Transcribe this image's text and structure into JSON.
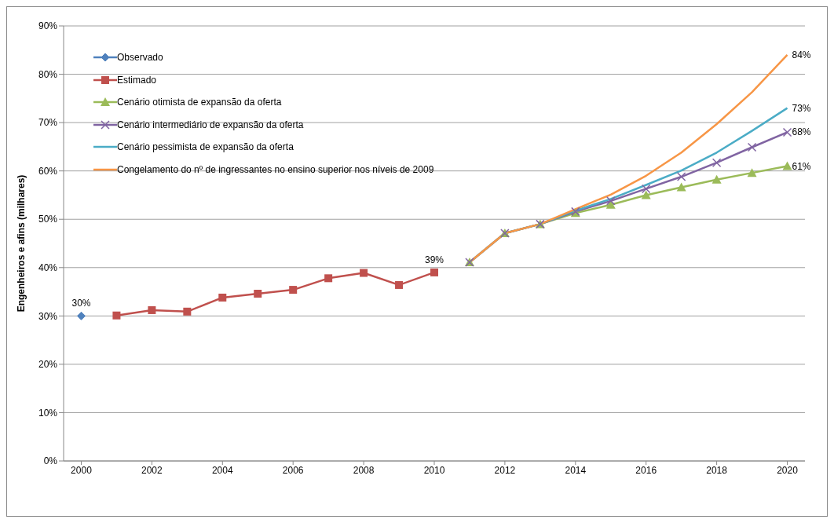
{
  "chart_data": {
    "type": "line",
    "ylabel": "Engenheiros e afins (milhares)",
    "xlim": [
      1999.5,
      2020.5
    ],
    "xticks": [
      2000,
      2002,
      2004,
      2006,
      2008,
      2010,
      2012,
      2014,
      2016,
      2018,
      2020
    ],
    "ylim": [
      0,
      90
    ],
    "yticks": [
      {
        "value": 0,
        "label": "0%"
      },
      {
        "value": 10,
        "label": "10%"
      },
      {
        "value": 20,
        "label": "20%"
      },
      {
        "value": 30,
        "label": "30%"
      },
      {
        "value": 40,
        "label": "40%"
      },
      {
        "value": 50,
        "label": "50%"
      },
      {
        "value": 60,
        "label": "60%"
      },
      {
        "value": 70,
        "label": "70%"
      },
      {
        "value": 80,
        "label": "80%"
      },
      {
        "value": 90,
        "label": "90%"
      }
    ],
    "grid": "y",
    "legend": "top left",
    "series": [
      {
        "name": "Observado",
        "color": "#4f81bd",
        "marker": "diamond",
        "x": [
          2000
        ],
        "values": [
          30
        ],
        "value_labels": [
          "30%"
        ]
      },
      {
        "name": "Estimado",
        "color": "#c0504d",
        "marker": "square",
        "x": [
          2001,
          2002,
          2003,
          2004,
          2005,
          2006,
          2007,
          2008,
          2009,
          2010
        ],
        "values": [
          30.1,
          31.2,
          30.9,
          33.8,
          34.6,
          35.4,
          37.8,
          38.9,
          36.4,
          39
        ],
        "value_labels": [
          null,
          null,
          null,
          null,
          null,
          null,
          null,
          null,
          null,
          "39%"
        ]
      },
      {
        "name": "Cenário otimista de expansão da oferta",
        "color": "#9bbb59",
        "marker": "triangle",
        "x": [
          2011,
          2012,
          2013,
          2014,
          2015,
          2016,
          2017,
          2018,
          2019,
          2020
        ],
        "values": [
          41.1,
          47.1,
          49.0,
          51.3,
          53.0,
          55.0,
          56.6,
          58.2,
          59.6,
          61
        ],
        "value_labels": [
          null,
          null,
          null,
          null,
          null,
          null,
          null,
          null,
          null,
          "61%"
        ]
      },
      {
        "name": "Cenário intermediário de expansão da oferta",
        "color": "#8064a2",
        "marker": "cross",
        "x": [
          2011,
          2012,
          2013,
          2014,
          2015,
          2016,
          2017,
          2018,
          2019,
          2020
        ],
        "values": [
          41.1,
          47.1,
          49.0,
          51.6,
          53.8,
          56.3,
          58.8,
          61.7,
          64.9,
          68
        ],
        "value_labels": [
          null,
          null,
          null,
          null,
          null,
          null,
          null,
          null,
          null,
          "68%"
        ]
      },
      {
        "name": "Cenário pessimista de expansão da oferta",
        "color": "#4bacc6",
        "marker": "none",
        "x": [
          2011,
          2012,
          2013,
          2014,
          2015,
          2016,
          2017,
          2018,
          2019,
          2020
        ],
        "values": [
          41.1,
          47.1,
          49.0,
          51.8,
          54.2,
          57.1,
          60.1,
          63.8,
          68.3,
          73
        ],
        "value_labels": [
          null,
          null,
          null,
          null,
          null,
          null,
          null,
          null,
          null,
          "73%"
        ]
      },
      {
        "name": "Congelamento do nº de ingressantes no ensino superior nos níveis de 2009",
        "color": "#f79646",
        "marker": "none",
        "x": [
          2011,
          2012,
          2013,
          2014,
          2015,
          2016,
          2017,
          2018,
          2019,
          2020
        ],
        "values": [
          41.1,
          47.1,
          49.0,
          52.1,
          55.1,
          59.0,
          63.8,
          69.7,
          76.3,
          84
        ],
        "value_labels": [
          null,
          null,
          null,
          null,
          null,
          null,
          null,
          null,
          null,
          "84%"
        ]
      }
    ]
  }
}
